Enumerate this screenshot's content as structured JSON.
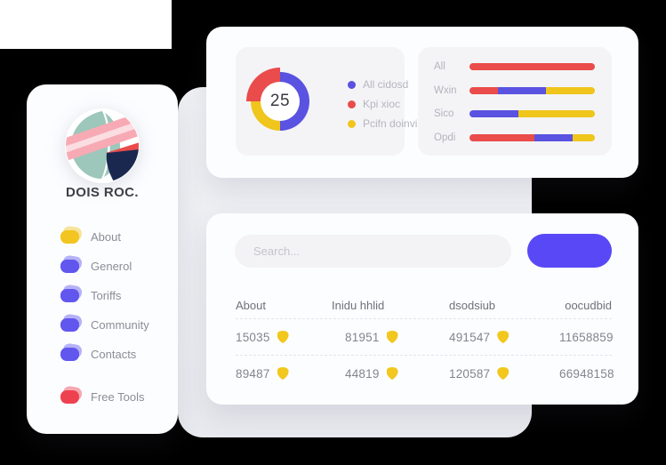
{
  "theme": {
    "purple": "#5a52e0",
    "red": "#e94c4b",
    "yellow": "#f2c71e",
    "teal": "#9cc7ba",
    "navy": "#1a2850",
    "pink": "#f8aab4",
    "pink_light": "#fbdde2",
    "button_blue": "#5848f5"
  },
  "sidebar": {
    "brand": "DOIS ROC.",
    "items": [
      {
        "label": "About",
        "color": "#f2c521"
      },
      {
        "label": "Generol",
        "color": "#6156ee"
      },
      {
        "label": "Toriffs",
        "color": "#6156ee"
      },
      {
        "label": "Community",
        "color": "#6156ee"
      },
      {
        "label": "Contacts",
        "color": "#6156ee"
      },
      {
        "label": "Free Tools",
        "color": "#ee4150"
      }
    ]
  },
  "chart_data": [
    {
      "type": "pie",
      "donut": true,
      "center_label": "25",
      "legend_position": "right",
      "slices": [
        {
          "label": "All cidosd",
          "value": 50,
          "color": "#5a52e0"
        },
        {
          "label": "Kpi xioc",
          "value": 25,
          "color": "#e94c4b",
          "highlight": true
        },
        {
          "label": "Pcifn doinvi",
          "value": 25,
          "color": "#f0c51c"
        }
      ]
    },
    {
      "type": "bar",
      "orientation": "horizontal",
      "stacked": true,
      "categories": [
        "All",
        "Wxin",
        "Sico",
        "Opdi"
      ],
      "series": [
        {
          "name": "Kpi xioc",
          "color": "#e94c4b",
          "values": [
            100,
            23,
            0,
            52
          ]
        },
        {
          "name": "All cidosd",
          "color": "#5a52e0",
          "values": [
            0,
            38,
            39,
            30
          ]
        },
        {
          "name": "Pcifn doinvi",
          "color": "#f0c51c",
          "values": [
            0,
            39,
            61,
            18
          ]
        }
      ],
      "xlim": [
        0,
        100
      ],
      "unit": "percent",
      "grid": false
    }
  ],
  "table_card": {
    "search": {
      "placeholder": "Search..."
    },
    "button": {
      "label": "",
      "color": "#5848f5"
    },
    "table": {
      "headers": [
        "About",
        "Inidu hhlid",
        "dsodsiub",
        "oocudbid"
      ],
      "rows": [
        {
          "cells": [
            {
              "value": "15035",
              "badge": true
            },
            {
              "value": "81951",
              "badge": true
            },
            {
              "value": "491547",
              "badge": true
            },
            {
              "value": "11658859",
              "badge": false
            }
          ]
        },
        {
          "cells": [
            {
              "value": "89487",
              "badge": true
            },
            {
              "value": "44819",
              "badge": true
            },
            {
              "value": "120587",
              "badge": true
            },
            {
              "value": "66948158",
              "badge": false
            }
          ]
        }
      ]
    }
  }
}
